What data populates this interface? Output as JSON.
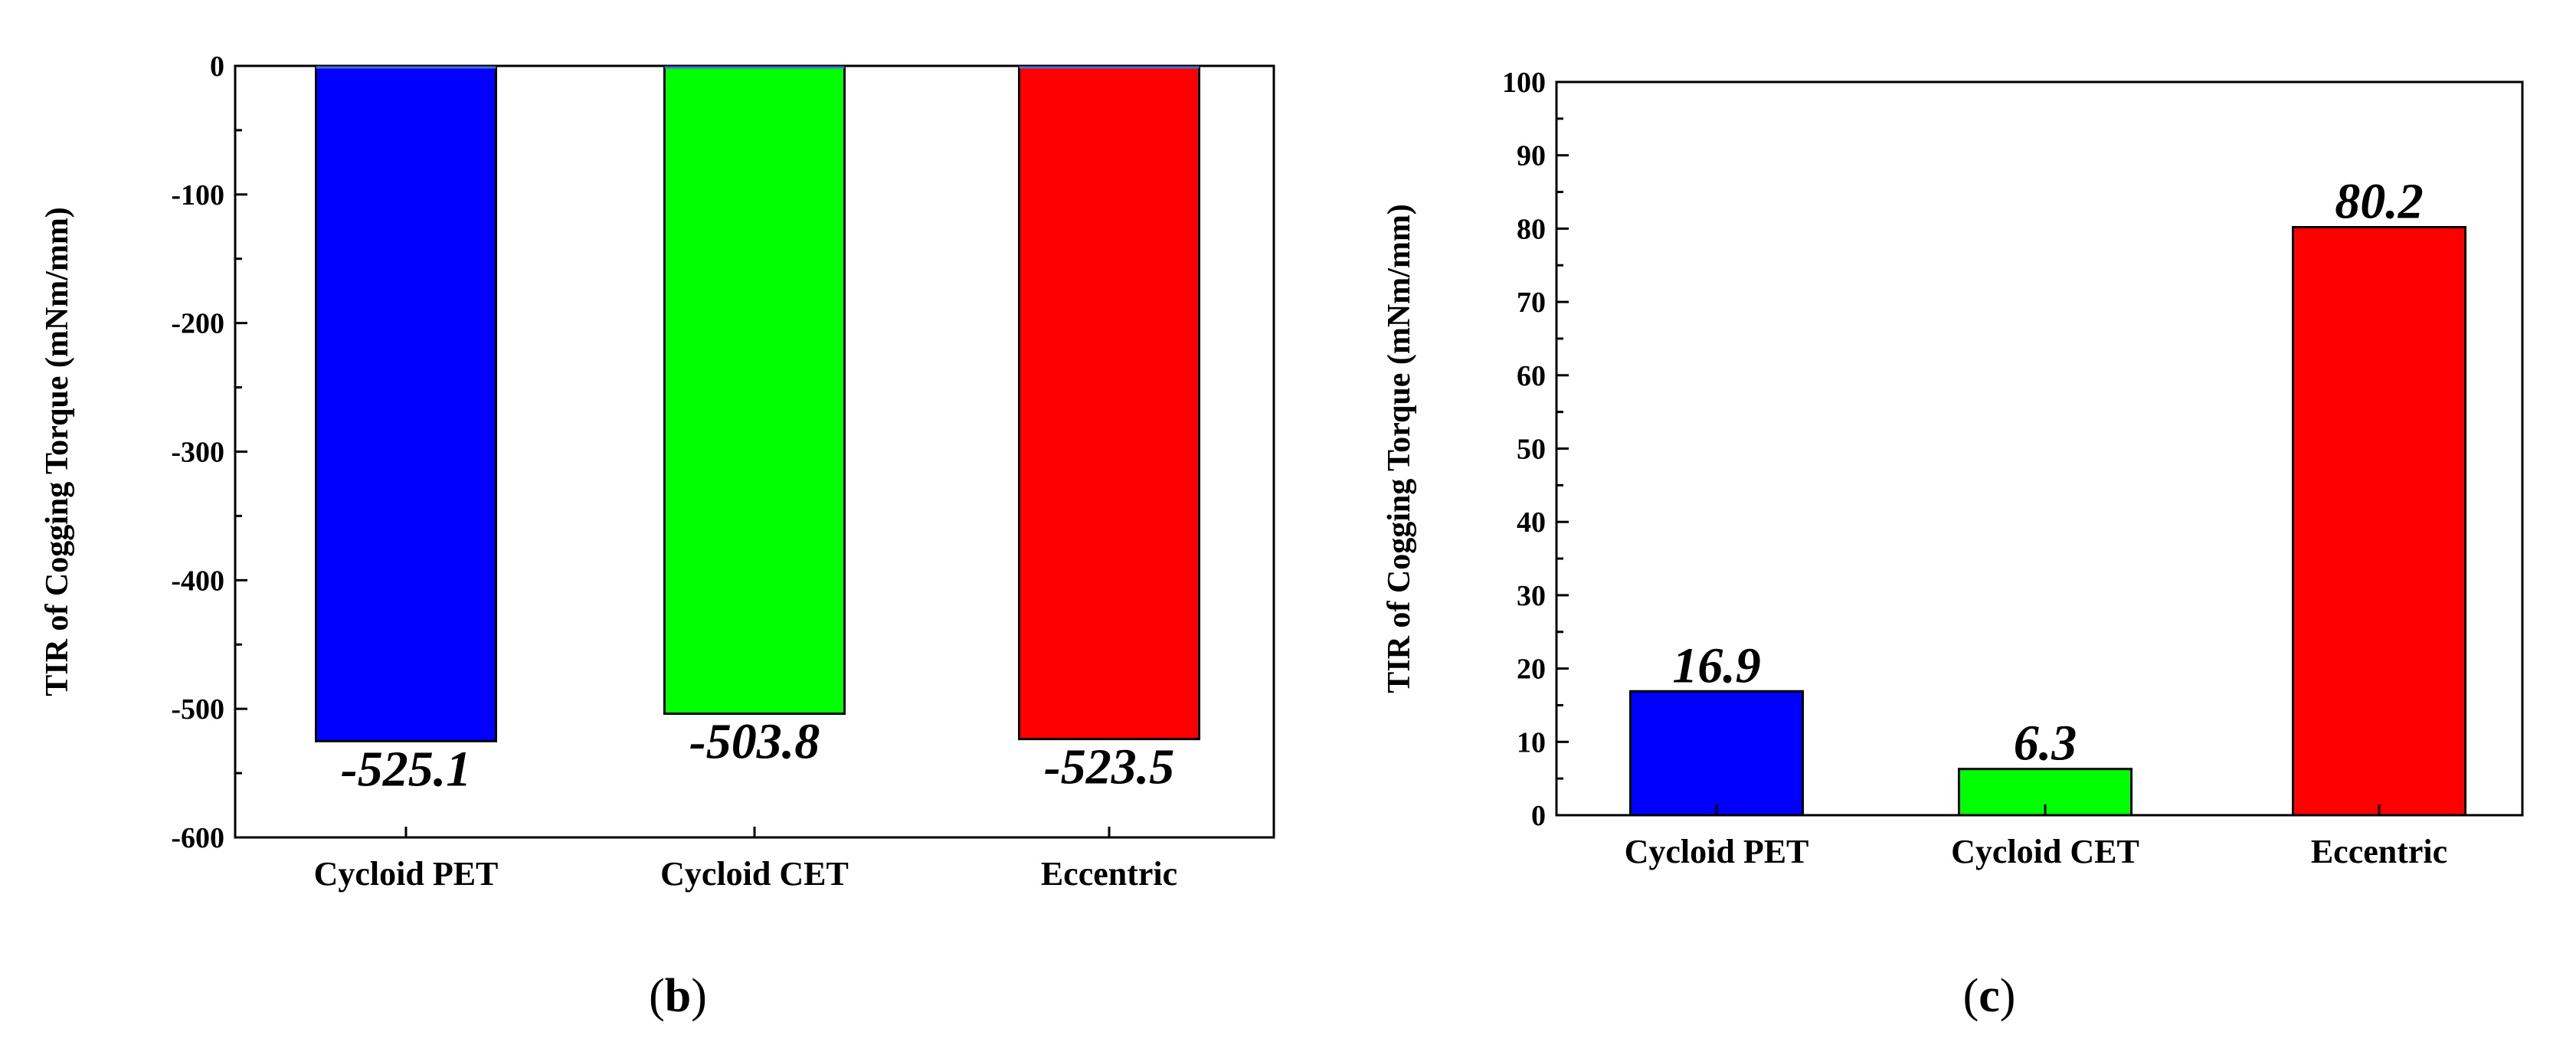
{
  "figure": {
    "panels": [
      {
        "id": "b",
        "label_open": "(",
        "label_letter": "b",
        "label_close": ")"
      },
      {
        "id": "c",
        "label_open": "(",
        "label_letter": "c",
        "label_close": ")"
      }
    ]
  },
  "chart_data": [
    {
      "type": "bar",
      "panel": "b",
      "title": "",
      "xlabel": "",
      "ylabel": "TIR of Cogging Torque (mNm/mm)",
      "categories": [
        "Cycloid PET",
        "Cycloid CET",
        "Eccentric"
      ],
      "values": [
        -525.1,
        -503.8,
        -523.5
      ],
      "data_labels": [
        "-525.1",
        "-503.8",
        "-523.5"
      ],
      "colors": [
        "#0000ff",
        "#00ff00",
        "#ff0000"
      ],
      "ylim": [
        -600,
        0
      ],
      "yticks": [
        0,
        -100,
        -200,
        -300,
        -400,
        -500,
        -600
      ],
      "ytick_labels": [
        "0",
        "-100",
        "-200",
        "-300",
        "-400",
        "-500",
        "-600"
      ],
      "grid": false
    },
    {
      "type": "bar",
      "panel": "c",
      "title": "",
      "xlabel": "",
      "ylabel": "TIR of Cogging Torque (mNm/mm)",
      "categories": [
        "Cycloid PET",
        "Cycloid CET",
        "Eccentric"
      ],
      "values": [
        16.9,
        6.3,
        80.2
      ],
      "data_labels": [
        "16.9",
        "6.3",
        "80.2"
      ],
      "colors": [
        "#0000ff",
        "#00ff00",
        "#ff0000"
      ],
      "ylim": [
        0,
        100
      ],
      "yticks": [
        0,
        10,
        20,
        30,
        40,
        50,
        60,
        70,
        80,
        90,
        100
      ],
      "ytick_labels": [
        "0",
        "10",
        "20",
        "30",
        "40",
        "50",
        "60",
        "70",
        "80",
        "90",
        "100"
      ],
      "grid": false
    }
  ]
}
